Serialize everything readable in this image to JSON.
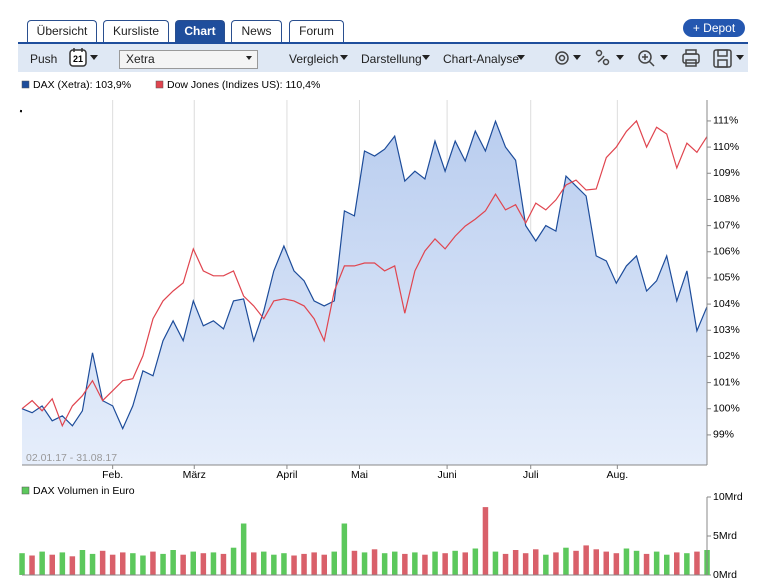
{
  "tabs": [
    "Übersicht",
    "Kursliste",
    "Chart",
    "News",
    "Forum"
  ],
  "active_tab": 2,
  "depot_button": "+ Depot",
  "toolbar": {
    "push": "Push",
    "calendar": "21",
    "exchange": "Xetra",
    "menus": [
      "Vergleich",
      "Darstellung",
      "Chart-Analyse"
    ]
  },
  "chart_data": [
    {
      "type": "line",
      "date_range": "02.01.17 - 31.08.17",
      "xlim": [
        0,
        68
      ],
      "xticks": [
        {
          "value": 9.0,
          "label": "Feb."
        },
        {
          "value": 17.1,
          "label": "März"
        },
        {
          "value": 26.3,
          "label": "April"
        },
        {
          "value": 33.5,
          "label": "Mai"
        },
        {
          "value": 42.2,
          "label": "Juni"
        },
        {
          "value": 50.5,
          "label": "Juli"
        },
        {
          "value": 59.1,
          "label": "Aug."
        }
      ],
      "ylim": [
        97.85,
        111.8
      ],
      "yticks": [
        {
          "value": 99,
          "label": "99%"
        },
        {
          "value": 100,
          "label": "100%"
        },
        {
          "value": 101,
          "label": "101%"
        },
        {
          "value": 102,
          "label": "102%"
        },
        {
          "value": 103,
          "label": "103%"
        },
        {
          "value": 104,
          "label": "104%"
        },
        {
          "value": 105,
          "label": "105%"
        },
        {
          "value": 106,
          "label": "106%"
        },
        {
          "value": 107,
          "label": "107%"
        },
        {
          "value": 108,
          "label": "108%"
        },
        {
          "value": 109,
          "label": "109%"
        },
        {
          "value": 110,
          "label": "110%"
        },
        {
          "value": 111,
          "label": "111%"
        }
      ],
      "grid": true,
      "series": [
        {
          "name": "DAX (Xetra): 103,9%",
          "color": "#1d4c9a",
          "fill": true,
          "values": [
            100.0,
            99.85,
            100.11,
            99.54,
            99.73,
            99.35,
            99.92,
            102.14,
            100.31,
            100.11,
            99.24,
            100.11,
            101.45,
            101.26,
            102.6,
            103.36,
            102.6,
            104.12,
            103.17,
            103.36,
            103.05,
            104.12,
            104.2,
            102.6,
            103.74,
            105.27,
            106.22,
            105.27,
            104.89,
            104.12,
            103.93,
            104.12,
            107.56,
            107.37,
            109.85,
            109.66,
            109.92,
            110.42,
            108.7,
            109.08,
            108.78,
            110.23,
            109.08,
            110.23,
            109.47,
            110.61,
            109.85,
            110.99,
            110.0,
            109.5,
            107.0,
            106.41,
            107.0,
            106.79,
            108.89,
            108.51,
            108.13,
            105.84,
            105.65,
            104.8,
            105.46,
            105.84,
            104.5,
            104.89,
            105.84,
            104.12,
            105.27,
            102.98,
            103.9
          ]
        },
        {
          "name": "Dow Jones (Indizes US): 110,4%",
          "color": "#e0454f",
          "fill": false,
          "values": [
            100.0,
            100.31,
            99.92,
            100.38,
            99.35,
            100.11,
            100.5,
            101.07,
            100.31,
            100.69,
            101.07,
            101.15,
            102.02,
            103.44,
            104.12,
            104.5,
            104.81,
            106.11,
            105.27,
            105.08,
            105.08,
            105.27,
            104.31,
            103.93,
            103.44,
            104.12,
            104.2,
            104.12,
            103.93,
            103.44,
            102.6,
            104.5,
            105.46,
            105.46,
            105.57,
            105.57,
            105.27,
            105.46,
            103.65,
            105.27,
            106.03,
            106.49,
            106.11,
            106.6,
            106.98,
            107.25,
            107.56,
            108.2,
            107.6,
            107.8,
            107.1,
            107.86,
            107.6,
            107.98,
            108.55,
            108.74,
            108.36,
            108.4,
            109.6,
            110.0,
            110.6,
            111.0,
            110.0,
            110.76,
            110.5,
            109.2,
            110.15,
            109.8,
            110.4
          ]
        }
      ]
    },
    {
      "type": "bar",
      "title": "DAX Volumen in Euro",
      "color": "#5cc85c",
      "down_color": "#d9606a",
      "xlim": [
        0,
        68
      ],
      "ylim": [
        0,
        10
      ],
      "yticks": [
        {
          "value": 0,
          "label": "0Mrd"
        },
        {
          "value": 5,
          "label": "5Mrd"
        },
        {
          "value": 10,
          "label": "10Mrd"
        }
      ],
      "values": [
        2.8,
        2.5,
        3.0,
        2.6,
        2.9,
        2.4,
        3.2,
        2.7,
        3.1,
        2.6,
        2.9,
        2.8,
        2.5,
        3.0,
        2.7,
        3.2,
        2.6,
        3.0,
        2.8,
        2.9,
        2.7,
        3.5,
        6.6,
        2.9,
        3.0,
        2.6,
        2.8,
        2.5,
        2.7,
        2.9,
        2.6,
        3.0,
        6.6,
        3.1,
        2.9,
        3.3,
        2.8,
        3.0,
        2.7,
        2.9,
        2.6,
        3.0,
        2.8,
        3.1,
        2.9,
        3.4,
        8.7,
        3.0,
        2.7,
        3.2,
        2.8,
        3.3,
        2.6,
        2.9,
        3.5,
        3.1,
        3.8,
        3.3,
        3.0,
        2.8,
        3.4,
        3.1,
        2.7,
        3.0,
        2.6,
        2.9,
        2.8,
        3.0,
        3.2
      ]
    }
  ]
}
